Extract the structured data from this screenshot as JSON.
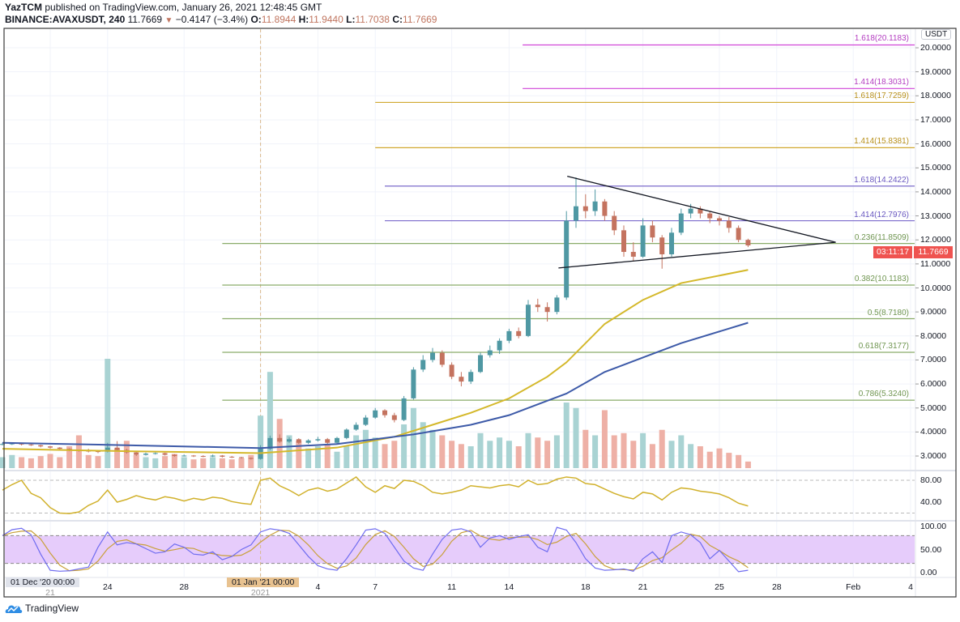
{
  "header": {
    "author": "YazTCM",
    "published_text": "published on TradingView.com, January 26, 2021 12:48:45 GMT",
    "symbol": "BINANCE:AVAXUSDT, 240",
    "last": "11.7669",
    "change": "−0.4147 (−3.4%)",
    "o_label": "O:",
    "o": "11.8944",
    "h_label": "H:",
    "h": "11.9440",
    "l_label": "L:",
    "l": "11.7038",
    "c_label": "C:",
    "c": "11.7669"
  },
  "price_axis": {
    "currency": "USDT",
    "labels": [
      "20.0000",
      "19.0000",
      "18.0000",
      "17.0000",
      "16.0000",
      "15.0000",
      "14.0000",
      "13.0000",
      "12.0000",
      "11.0000",
      "10.0000",
      "9.0000",
      "8.0000",
      "7.0000",
      "6.0000",
      "5.0000",
      "4.0000",
      "3.0000"
    ],
    "last_price_badge": "11.7669",
    "countdown_badge": "03:11:17",
    "badge_color": "#ef5350"
  },
  "rsi_axis": {
    "labels": [
      "80.00",
      "40.00"
    ]
  },
  "stoch_axis": {
    "labels": [
      "100.00",
      "50.00",
      "0.00"
    ]
  },
  "time_axis": {
    "crosshair_left": "01 Dec '20 00:00",
    "crosshair_highlight": "01 Jan '21 00:00",
    "ticks": [
      {
        "label": "21",
        "date": "2020-12-21"
      },
      {
        "label": "24",
        "date": "2020-12-24"
      },
      {
        "label": "28",
        "date": "2020-12-28"
      },
      {
        "label": "2021",
        "date": "2021-01-01"
      },
      {
        "label": "4",
        "date": "2021-01-04"
      },
      {
        "label": "7",
        "date": "2021-01-07"
      },
      {
        "label": "11",
        "date": "2021-01-11"
      },
      {
        "label": "14",
        "date": "2021-01-14"
      },
      {
        "label": "18",
        "date": "2021-01-18"
      },
      {
        "label": "21",
        "date": "2021-01-21"
      },
      {
        "label": "25",
        "date": "2021-01-25"
      },
      {
        "label": "28",
        "date": "2021-01-28"
      },
      {
        "label": "Feb",
        "date": "2021-02-01"
      },
      {
        "label": "4",
        "date": "2021-02-04"
      }
    ]
  },
  "footer": {
    "brand": "TradingView"
  },
  "colors": {
    "up": "#4f98a3",
    "down": "#c4735f",
    "vol_up": "#a9d3d3",
    "vol_down": "#eeb0a6",
    "rsi": "#d1b12c",
    "stoch_k": "#6f6cf0",
    "stoch_d": "#c9a03a",
    "stoch_band": "#e6ccfb"
  },
  "chart_data": {
    "type": "candlestick",
    "symbol": "BINANCE:AVAXUSDT",
    "ylim": [
      2.5,
      20.8
    ],
    "grid": true,
    "first_candle": "2020-12-18T12:00Z",
    "last_candle": "2021-01-26T12:00Z",
    "candles_ohlcv": [
      [
        3.48,
        3.55,
        3.44,
        3.5,
        1.0
      ],
      [
        3.5,
        3.56,
        3.46,
        3.52,
        1.2
      ],
      [
        3.52,
        3.54,
        3.44,
        3.48,
        1.0
      ],
      [
        3.48,
        3.5,
        3.42,
        3.45,
        0.9
      ],
      [
        3.45,
        3.47,
        3.36,
        3.4,
        1.1
      ],
      [
        3.4,
        3.42,
        3.31,
        3.35,
        1.3
      ],
      [
        3.35,
        3.37,
        3.26,
        3.3,
        1.0
      ],
      [
        3.3,
        3.32,
        3.2,
        3.25,
        2.0
      ],
      [
        3.25,
        3.27,
        3.18,
        3.22,
        3.0
      ],
      [
        3.22,
        3.3,
        3.15,
        3.2,
        1.2
      ],
      [
        3.2,
        3.25,
        3.12,
        3.18,
        1.1
      ],
      [
        3.18,
        3.55,
        3.15,
        3.35,
        10.0
      ],
      [
        3.35,
        3.62,
        3.22,
        3.25,
        1.8
      ],
      [
        3.25,
        3.3,
        3.1,
        3.15,
        2.5
      ],
      [
        3.15,
        3.18,
        3.0,
        3.05,
        1.2
      ],
      [
        3.05,
        3.14,
        3.02,
        3.1,
        1.0
      ],
      [
        3.1,
        3.15,
        3.06,
        3.12,
        0.9
      ],
      [
        3.12,
        3.14,
        3.02,
        3.05,
        1.1
      ],
      [
        3.05,
        3.08,
        2.97,
        3.0,
        1.3
      ],
      [
        3.0,
        3.06,
        2.98,
        3.02,
        1.0
      ],
      [
        3.02,
        3.04,
        2.96,
        3.0,
        0.8
      ],
      [
        3.0,
        3.03,
        2.95,
        2.98,
        0.9
      ],
      [
        2.98,
        3.06,
        2.96,
        3.02,
        1.0
      ],
      [
        3.02,
        3.04,
        2.94,
        2.97,
        0.9
      ],
      [
        2.97,
        3.0,
        2.92,
        2.95,
        0.8
      ],
      [
        2.95,
        2.97,
        2.89,
        2.92,
        0.9
      ],
      [
        2.92,
        2.94,
        2.85,
        2.88,
        1.2
      ],
      [
        2.88,
        3.45,
        2.85,
        3.3,
        4.8
      ],
      [
        3.3,
        3.85,
        3.25,
        3.75,
        8.8
      ],
      [
        3.75,
        3.9,
        3.55,
        3.6,
        4.5
      ],
      [
        3.6,
        3.78,
        3.55,
        3.7,
        3.0
      ],
      [
        3.7,
        3.74,
        3.5,
        3.55,
        2.5
      ],
      [
        3.55,
        3.7,
        3.5,
        3.65,
        1.8
      ],
      [
        3.65,
        3.8,
        3.6,
        3.7,
        2.0
      ],
      [
        3.7,
        3.75,
        3.5,
        3.55,
        2.2
      ],
      [
        3.55,
        3.8,
        3.52,
        3.75,
        1.5
      ],
      [
        3.75,
        4.15,
        3.7,
        4.1,
        2.0
      ],
      [
        4.1,
        4.4,
        4.05,
        4.3,
        3.0
      ],
      [
        4.3,
        4.7,
        4.25,
        4.6,
        3.5
      ],
      [
        4.6,
        5.0,
        4.55,
        4.9,
        2.8
      ],
      [
        4.9,
        4.95,
        4.6,
        4.7,
        2.2
      ],
      [
        4.7,
        4.8,
        4.4,
        4.5,
        2.5
      ],
      [
        4.5,
        5.5,
        4.45,
        5.4,
        4.0
      ],
      [
        5.4,
        6.7,
        5.35,
        6.6,
        5.5
      ],
      [
        6.6,
        7.2,
        6.5,
        7.0,
        4.2
      ],
      [
        7.0,
        7.5,
        6.9,
        7.3,
        3.5
      ],
      [
        7.3,
        7.4,
        6.7,
        6.8,
        3.0
      ],
      [
        6.8,
        6.9,
        6.2,
        6.3,
        2.5
      ],
      [
        6.3,
        6.5,
        5.9,
        6.1,
        2.2
      ],
      [
        6.1,
        6.6,
        6.0,
        6.5,
        2.0
      ],
      [
        6.5,
        7.3,
        6.45,
        7.2,
        3.2
      ],
      [
        7.2,
        7.6,
        7.1,
        7.4,
        2.5
      ],
      [
        7.4,
        7.9,
        7.25,
        7.8,
        2.8
      ],
      [
        7.8,
        8.3,
        7.7,
        8.2,
        2.5
      ],
      [
        8.2,
        8.35,
        7.9,
        8.0,
        2.0
      ],
      [
        8.0,
        9.5,
        7.95,
        9.3,
        3.2
      ],
      [
        9.3,
        9.55,
        9.0,
        9.2,
        2.8
      ],
      [
        9.2,
        9.4,
        8.6,
        9.0,
        2.5
      ],
      [
        9.0,
        9.7,
        8.9,
        9.6,
        3.0
      ],
      [
        9.6,
        13.2,
        9.5,
        12.8,
        6.0
      ],
      [
        12.8,
        14.6,
        12.5,
        13.4,
        5.5
      ],
      [
        13.4,
        13.9,
        12.9,
        13.2,
        3.5
      ],
      [
        13.2,
        14.1,
        13.0,
        13.6,
        3.0
      ],
      [
        13.6,
        13.7,
        12.8,
        13.0,
        5.3
      ],
      [
        13.0,
        13.2,
        12.2,
        12.4,
        3.0
      ],
      [
        12.4,
        12.6,
        11.3,
        11.5,
        3.2
      ],
      [
        11.5,
        11.9,
        11.1,
        11.3,
        2.5
      ],
      [
        11.3,
        12.9,
        11.25,
        12.6,
        3.2
      ],
      [
        12.6,
        12.8,
        11.9,
        12.1,
        2.2
      ],
      [
        12.1,
        12.2,
        10.8,
        11.4,
        3.5
      ],
      [
        11.4,
        12.5,
        11.3,
        12.3,
        2.5
      ],
      [
        12.3,
        13.3,
        12.2,
        13.1,
        3.0
      ],
      [
        13.1,
        13.5,
        12.9,
        13.3,
        2.2
      ],
      [
        13.3,
        13.4,
        12.9,
        13.1,
        2.0
      ],
      [
        13.1,
        13.2,
        12.7,
        12.9,
        1.5
      ],
      [
        12.9,
        13.0,
        12.6,
        12.8,
        1.8
      ],
      [
        12.8,
        12.95,
        12.3,
        12.5,
        1.4
      ],
      [
        12.5,
        12.6,
        11.9,
        12.0,
        1.2
      ],
      [
        12.0,
        12.05,
        11.7,
        11.77,
        0.6
      ]
    ],
    "moving_averages": [
      {
        "color": "#d4b82a",
        "points": [
          [
            "2020-12-18T12:00Z",
            3.3
          ],
          [
            "2020-12-25T00:00Z",
            3.2
          ],
          [
            "2021-01-01T00:00Z",
            3.12
          ],
          [
            "2021-01-05T00:00Z",
            3.35
          ],
          [
            "2021-01-08T00:00Z",
            3.8
          ],
          [
            "2021-01-10T00:00Z",
            4.3
          ],
          [
            "2021-01-12T00:00Z",
            4.8
          ],
          [
            "2021-01-14T00:00Z",
            5.4
          ],
          [
            "2021-01-16T00:00Z",
            6.3
          ],
          [
            "2021-01-17T00:00Z",
            6.9
          ],
          [
            "2021-01-19T00:00Z",
            8.5
          ],
          [
            "2021-01-21T00:00Z",
            9.5
          ],
          [
            "2021-01-23T00:00Z",
            10.2
          ],
          [
            "2021-01-26T12:00Z",
            10.75
          ]
        ]
      },
      {
        "color": "#3d5aa8",
        "points": [
          [
            "2020-12-18T12:00Z",
            3.55
          ],
          [
            "2020-12-25T00:00Z",
            3.45
          ],
          [
            "2021-01-01T00:00Z",
            3.33
          ],
          [
            "2021-01-05T00:00Z",
            3.5
          ],
          [
            "2021-01-09T00:00Z",
            3.9
          ],
          [
            "2021-01-12T00:00Z",
            4.3
          ],
          [
            "2021-01-14T00:00Z",
            4.7
          ],
          [
            "2021-01-16T00:00Z",
            5.3
          ],
          [
            "2021-01-17T00:00Z",
            5.6
          ],
          [
            "2021-01-19T00:00Z",
            6.5
          ],
          [
            "2021-01-21T00:00Z",
            7.1
          ],
          [
            "2021-01-23T00:00Z",
            7.7
          ],
          [
            "2021-01-26T12:00Z",
            8.55
          ]
        ]
      }
    ],
    "trendlines": [
      {
        "from": [
          "2021-01-17T01:00Z",
          14.65
        ],
        "to": [
          "2021-01-31T02:00Z",
          11.9
        ]
      },
      {
        "from": [
          "2021-01-16T14:00Z",
          10.83
        ],
        "to": [
          "2021-01-31T02:00Z",
          11.9
        ]
      }
    ],
    "fib_levels": [
      {
        "label": "1.618(20.1183)",
        "price": 20.1183,
        "from": "2021-01-14T17:00Z",
        "color": "#d046d8",
        "text_color": "#b33cc0"
      },
      {
        "label": "1.414(18.3031)",
        "price": 18.3031,
        "from": "2021-01-14T17:00Z",
        "color": "#d046d8",
        "text_color": "#b33cc0"
      },
      {
        "label": "1.618(17.7259)",
        "price": 17.7259,
        "from": "2021-01-07T00:00Z",
        "color": "#d0a830",
        "text_color": "#b8901a"
      },
      {
        "label": "1.414(15.8381)",
        "price": 15.8381,
        "from": "2021-01-07T00:00Z",
        "color": "#d0a830",
        "text_color": "#b8901a"
      },
      {
        "label": "1.618(14.2422)",
        "price": 14.2422,
        "from": "2021-01-07T12:00Z",
        "color": "#7d6ccc",
        "text_color": "#6a58c0"
      },
      {
        "label": "1.414(12.7976)",
        "price": 12.7976,
        "from": "2021-01-07T12:00Z",
        "color": "#7d6ccc",
        "text_color": "#6a58c0"
      },
      {
        "label": "0.236(11.8509)",
        "price": 11.8509,
        "from": "2020-12-30T00:00Z",
        "color": "#8aac6a",
        "text_color": "#6f9550"
      },
      {
        "label": "0.382(10.1183)",
        "price": 10.1183,
        "from": "2020-12-30T00:00Z",
        "color": "#8aac6a",
        "text_color": "#6f9550"
      },
      {
        "label": "0.5(8.7180)",
        "price": 8.718,
        "from": "2020-12-30T00:00Z",
        "color": "#8aac6a",
        "text_color": "#6f9550"
      },
      {
        "label": "0.618(7.3177)",
        "price": 7.3177,
        "from": "2020-12-30T00:00Z",
        "color": "#8aac6a",
        "text_color": "#6f9550"
      },
      {
        "label": "0.786(5.3240)",
        "price": 5.324,
        "from": "2020-12-30T00:00Z",
        "color": "#8aac6a",
        "text_color": "#6f9550"
      }
    ],
    "rsi": [
      62,
      72,
      80,
      56,
      48,
      30,
      20,
      19,
      22,
      34,
      42,
      62,
      40,
      45,
      52,
      47,
      44,
      50,
      47,
      42,
      47,
      44,
      49,
      47,
      41,
      38,
      36,
      80,
      84,
      70,
      62,
      52,
      62,
      66,
      60,
      64,
      75,
      86,
      68,
      58,
      70,
      65,
      80,
      78,
      70,
      58,
      55,
      58,
      62,
      70,
      68,
      66,
      70,
      72,
      68,
      80,
      72,
      74,
      82,
      86,
      84,
      74,
      72,
      64,
      56,
      50,
      46,
      58,
      55,
      44,
      58,
      66,
      64,
      60,
      58,
      55,
      48,
      38,
      33
    ],
    "stoch_rsi_k": [
      80,
      93,
      96,
      82,
      40,
      5,
      3,
      4,
      8,
      12,
      55,
      88,
      60,
      65,
      62,
      52,
      42,
      45,
      62,
      55,
      40,
      38,
      45,
      28,
      35,
      50,
      60,
      88,
      95,
      92,
      85,
      60,
      35,
      15,
      8,
      5,
      30,
      60,
      92,
      95,
      85,
      55,
      25,
      10,
      5,
      40,
      72,
      92,
      95,
      88,
      55,
      75,
      80,
      72,
      78,
      82,
      55,
      45,
      98,
      92,
      65,
      30,
      10,
      5,
      6,
      8,
      3,
      30,
      45,
      22,
      80,
      88,
      82,
      65,
      30,
      48,
      25,
      2,
      5
    ]
  }
}
